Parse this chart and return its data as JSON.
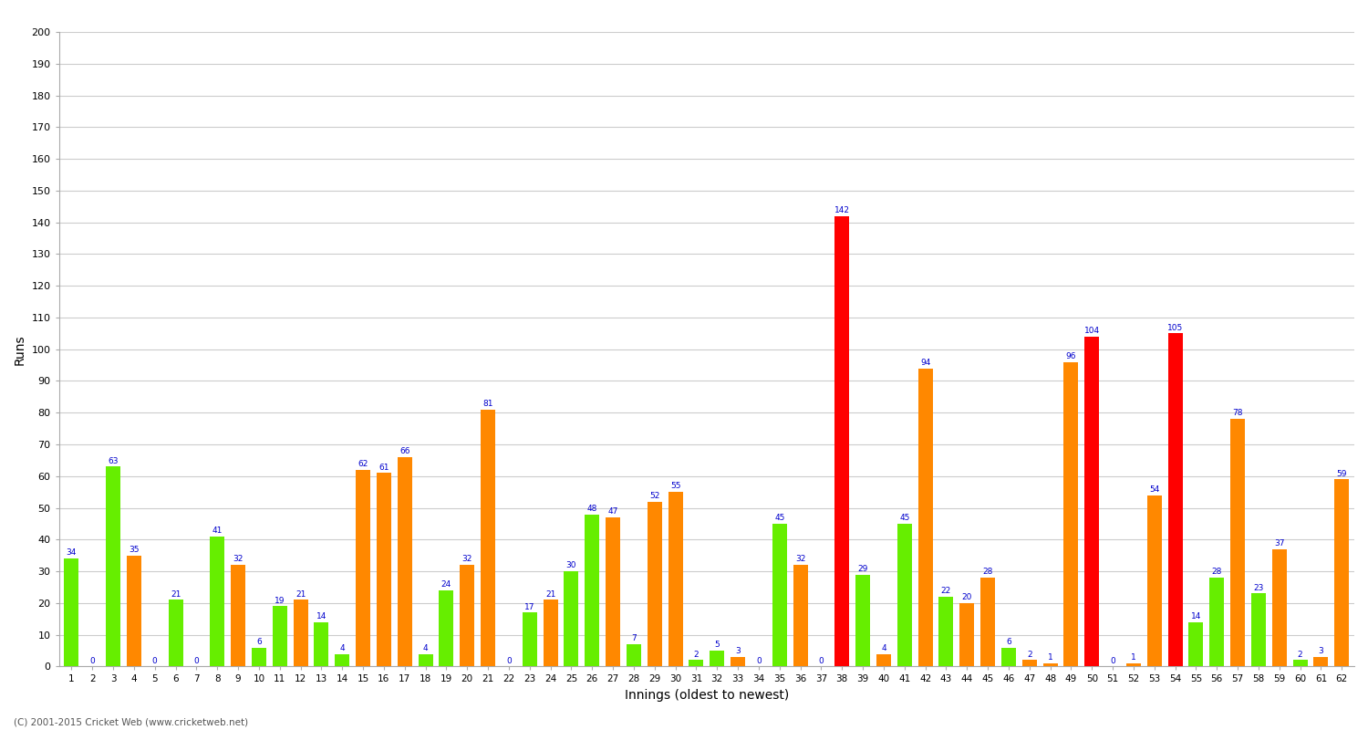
{
  "xlabel": "Innings (oldest to newest)",
  "ylabel": "Runs",
  "copyright": "(C) 2001-2015 Cricket Web (www.cricketweb.net)",
  "ylim": [
    0,
    200
  ],
  "yticks": [
    0,
    10,
    20,
    30,
    40,
    50,
    60,
    70,
    80,
    90,
    100,
    110,
    120,
    130,
    140,
    150,
    160,
    170,
    180,
    190,
    200
  ],
  "innings": [
    1,
    2,
    3,
    4,
    5,
    6,
    7,
    8,
    9,
    10,
    11,
    12,
    13,
    14,
    15,
    16,
    17,
    18,
    19,
    20,
    21,
    22,
    23,
    24,
    25,
    26,
    27,
    28,
    29,
    30,
    31,
    32,
    33,
    34,
    35,
    36,
    37,
    38,
    39,
    40,
    41,
    42,
    43,
    44,
    45,
    46,
    47,
    48,
    49,
    50,
    51,
    52,
    53,
    54,
    55,
    56,
    57,
    58,
    59,
    60,
    61,
    62
  ],
  "values": [
    34,
    0,
    63,
    35,
    0,
    21,
    0,
    41,
    32,
    6,
    19,
    21,
    14,
    4,
    62,
    61,
    66,
    4,
    24,
    32,
    81,
    0,
    17,
    21,
    30,
    48,
    47,
    7,
    52,
    55,
    2,
    5,
    3,
    0,
    45,
    32,
    0,
    142,
    29,
    4,
    45,
    94,
    22,
    20,
    28,
    6,
    2,
    1,
    96,
    104,
    0,
    1,
    54,
    105,
    14,
    28,
    78,
    23,
    37,
    2,
    3,
    59
  ],
  "colors": [
    "#66ee00",
    "#ff8800",
    "#66ee00",
    "#ff8800",
    "#66ee00",
    "#66ee00",
    "#66ee00",
    "#66ee00",
    "#ff8800",
    "#66ee00",
    "#66ee00",
    "#ff8800",
    "#66ee00",
    "#66ee00",
    "#ff8800",
    "#ff8800",
    "#ff8800",
    "#66ee00",
    "#66ee00",
    "#ff8800",
    "#ff8800",
    "#66ee00",
    "#66ee00",
    "#ff8800",
    "#66ee00",
    "#66ee00",
    "#ff8800",
    "#66ee00",
    "#ff8800",
    "#ff8800",
    "#66ee00",
    "#66ee00",
    "#ff8800",
    "#66ee00",
    "#66ee00",
    "#ff8800",
    "#66ee00",
    "#ff0000",
    "#66ee00",
    "#ff8800",
    "#66ee00",
    "#ff8800",
    "#66ee00",
    "#ff8800",
    "#ff8800",
    "#66ee00",
    "#ff8800",
    "#ff8800",
    "#ff8800",
    "#ff0000",
    "#66ee00",
    "#ff8800",
    "#ff8800",
    "#ff0000",
    "#66ee00",
    "#66ee00",
    "#ff8800",
    "#66ee00",
    "#ff8800",
    "#66ee00",
    "#ff8800",
    "#ff8800"
  ]
}
